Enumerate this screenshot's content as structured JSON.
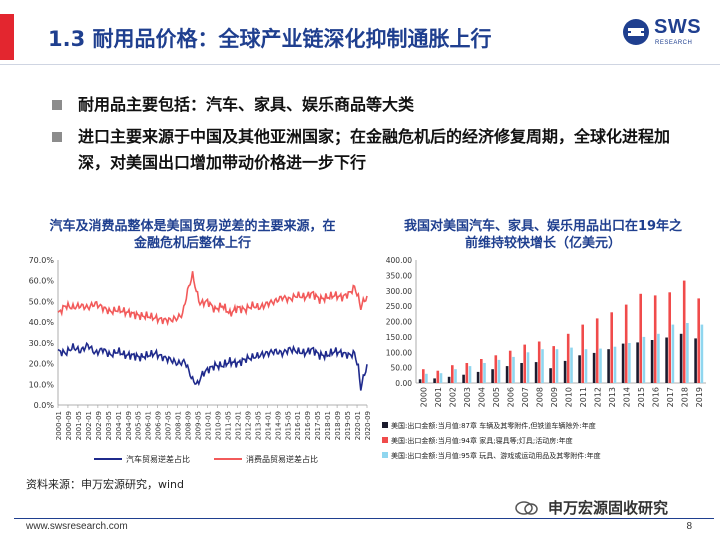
{
  "header": {
    "title": "1.3 耐用品价格：全球产业链深化抑制通胀上行",
    "logo_name": "SWS",
    "logo_sub": "RESEARCH"
  },
  "bullets": [
    "耐用品主要包括：汽车、家具、娱乐商品等大类",
    "进口主要来源于中国及其他亚洲国家；在金融危机后的经济修复周期，全球化进程加深，对美国出口增加带动价格进一步下行"
  ],
  "colors": {
    "accent": "#e3262f",
    "brand": "#1f3f8f",
    "navy_line": "#1f2a8c",
    "red_line": "#f25a5a",
    "black_bar": "#1b1b2e",
    "red_bar": "#f04b4b",
    "cyan_bar": "#8fd6ef"
  },
  "left_chart": {
    "title_lines": [
      "汽车及消费品整体是美国贸易逆差的主要来源，在",
      "金融危机后整体上行"
    ]
  },
  "right_chart": {
    "title_lines": [
      "我国对美国汽车、家具、娱乐用品出口在19年之",
      "前维持较快增长（亿美元）"
    ]
  },
  "chart_data": [
    {
      "type": "line",
      "title": "汽车及消费品整体是美国贸易逆差的主要来源，在金融危机后整体上行",
      "ylim": [
        0,
        70
      ],
      "yticks": [
        "0.0%",
        "10.0%",
        "20.0%",
        "30.0%",
        "40.0%",
        "50.0%",
        "60.0%",
        "70.0%"
      ],
      "x_ticks": [
        "2000-01",
        "2000-09",
        "2001-05",
        "2002-01",
        "2002-09",
        "2003-05",
        "2004-01",
        "2004-09",
        "2005-05",
        "2006-01",
        "2006-09",
        "2007-05",
        "2008-01",
        "2008-09",
        "2009-05",
        "2010-01",
        "2010-09",
        "2011-05",
        "2012-01",
        "2012-09",
        "2013-05",
        "2014-01",
        "2014-09",
        "2015-05",
        "2016-01",
        "2016-09",
        "2017-05",
        "2018-01",
        "2018-09",
        "2019-05",
        "2020-01",
        "2020-09"
      ],
      "series": [
        {
          "name": "汽车贸易逆差占比",
          "color": "#1f2a8c",
          "anchors": [
            [
              0,
              26
            ],
            [
              6,
              25
            ],
            [
              12,
              28
            ],
            [
              18,
              26
            ],
            [
              24,
              29
            ],
            [
              30,
              25
            ],
            [
              36,
              27
            ],
            [
              42,
              24
            ],
            [
              48,
              26
            ],
            [
              54,
              24
            ],
            [
              60,
              24
            ],
            [
              66,
              23
            ],
            [
              72,
              24
            ],
            [
              78,
              25
            ],
            [
              84,
              23
            ],
            [
              90,
              22
            ],
            [
              96,
              20
            ],
            [
              102,
              21
            ],
            [
              108,
              12
            ],
            [
              112,
              10
            ],
            [
              116,
              15
            ],
            [
              120,
              17
            ],
            [
              126,
              19
            ],
            [
              132,
              19
            ],
            [
              138,
              21
            ],
            [
              144,
              20
            ],
            [
              150,
              22
            ],
            [
              156,
              23
            ],
            [
              162,
              24
            ],
            [
              168,
              25
            ],
            [
              174,
              26
            ],
            [
              180,
              25
            ],
            [
              186,
              27
            ],
            [
              192,
              26
            ],
            [
              198,
              25
            ],
            [
              204,
              27
            ],
            [
              210,
              24
            ],
            [
              216,
              24
            ],
            [
              222,
              26
            ],
            [
              228,
              25
            ],
            [
              234,
              24
            ],
            [
              238,
              25
            ],
            [
              241,
              18
            ],
            [
              243,
              8
            ],
            [
              245,
              13
            ],
            [
              248,
              19
            ]
          ]
        },
        {
          "name": "消费品贸易逆差占比",
          "color": "#f25a5a",
          "anchors": [
            [
              0,
              44
            ],
            [
              6,
              48
            ],
            [
              12,
              47
            ],
            [
              18,
              48
            ],
            [
              24,
              47
            ],
            [
              30,
              49
            ],
            [
              36,
              47
            ],
            [
              42,
              45
            ],
            [
              48,
              46
            ],
            [
              54,
              45
            ],
            [
              60,
              44
            ],
            [
              66,
              43
            ],
            [
              72,
              43
            ],
            [
              78,
              42
            ],
            [
              84,
              41
            ],
            [
              90,
              41
            ],
            [
              96,
              42
            ],
            [
              100,
              44
            ],
            [
              104,
              55
            ],
            [
              108,
              63
            ],
            [
              111,
              55
            ],
            [
              114,
              49
            ],
            [
              120,
              50
            ],
            [
              126,
              46
            ],
            [
              132,
              48
            ],
            [
              138,
              44
            ],
            [
              144,
              47
            ],
            [
              150,
              46
            ],
            [
              156,
              48
            ],
            [
              162,
              47
            ],
            [
              168,
              49
            ],
            [
              174,
              50
            ],
            [
              180,
              52
            ],
            [
              186,
              51
            ],
            [
              192,
              53
            ],
            [
              198,
              52
            ],
            [
              204,
              54
            ],
            [
              210,
              51
            ],
            [
              216,
              52
            ],
            [
              222,
              53
            ],
            [
              228,
              52
            ],
            [
              234,
              54
            ],
            [
              238,
              57
            ],
            [
              241,
              52
            ],
            [
              243,
              47
            ],
            [
              245,
              50
            ],
            [
              248,
              52
            ]
          ]
        }
      ],
      "legend": [
        "汽车贸易逆差占比",
        "消费品贸易逆差占比"
      ]
    },
    {
      "type": "bar",
      "title": "我国对美国汽车、家具、娱乐用品出口在19年之前维持较快增长（亿美元）",
      "ylim": [
        0,
        400
      ],
      "yticks": [
        "0.00",
        "50.00",
        "100.00",
        "150.00",
        "200.00",
        "250.00",
        "300.00",
        "350.00",
        "400.00"
      ],
      "categories": [
        "2000",
        "2001",
        "2002",
        "2003",
        "2004",
        "2005",
        "2006",
        "2007",
        "2008",
        "2009",
        "2010",
        "2011",
        "2012",
        "2013",
        "2014",
        "2015",
        "2016",
        "2017",
        "2018",
        "2019"
      ],
      "series": [
        {
          "name": "美国:出口金额:当月值:87章 车辆及其零附件,但铁道车辆除外:年度",
          "color": "#1b1b2e",
          "values": [
            12,
            15,
            20,
            27,
            36,
            45,
            55,
            65,
            68,
            48,
            72,
            90,
            98,
            110,
            128,
            132,
            140,
            148,
            160,
            145
          ]
        },
        {
          "name": "美国:出口金额:当月值:94章 家具;寝具等;灯具;活动房:年度",
          "color": "#f04b4b",
          "values": [
            45,
            40,
            58,
            65,
            78,
            90,
            105,
            125,
            135,
            120,
            160,
            190,
            210,
            230,
            255,
            290,
            285,
            295,
            333,
            275
          ]
        },
        {
          "name": "美国:出口金额:当月值:95章 玩具、游戏或运动用品及其零附件:年度",
          "color": "#8fd6ef",
          "values": [
            30,
            32,
            45,
            55,
            65,
            75,
            85,
            100,
            110,
            110,
            115,
            110,
            112,
            118,
            130,
            150,
            160,
            190,
            195,
            190
          ]
        }
      ]
    }
  ],
  "source": "资料来源：申万宏源研究，wind",
  "watermark": "申万宏源固收研究",
  "footer": {
    "url": "www.swsresearch.com",
    "page": "8"
  }
}
